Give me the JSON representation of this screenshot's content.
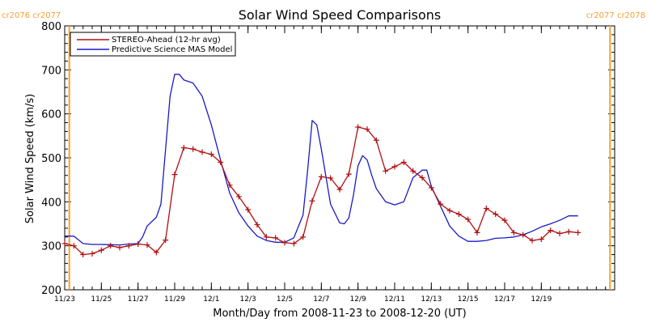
{
  "chart_data": {
    "type": "line",
    "title": "Solar Wind Speed Comparisons",
    "xlabel": "Month/Day from 2008-11-23 to 2008-12-20 (UT)",
    "ylabel": "Solar Wind Speed (km/s)",
    "xlim": [
      "2008-11-23",
      "2008-12-23"
    ],
    "ylim": [
      200,
      800
    ],
    "yticks": [
      200,
      300,
      400,
      500,
      600,
      700,
      800
    ],
    "xticks": [
      {
        "date": "2008-11-23",
        "label": "11/23"
      },
      {
        "date": "2008-11-25",
        "label": "11/25"
      },
      {
        "date": "2008-11-27",
        "label": "11/27"
      },
      {
        "date": "2008-11-29",
        "label": "11/29"
      },
      {
        "date": "2008-12-01",
        "label": "12/1"
      },
      {
        "date": "2008-12-03",
        "label": "12/3"
      },
      {
        "date": "2008-12-05",
        "label": "12/5"
      },
      {
        "date": "2008-12-07",
        "label": "12/7"
      },
      {
        "date": "2008-12-09",
        "label": "12/9"
      },
      {
        "date": "2008-12-11",
        "label": "12/11"
      },
      {
        "date": "2008-12-13",
        "label": "12/13"
      },
      {
        "date": "2008-12-15",
        "label": "12/15"
      },
      {
        "date": "2008-12-17",
        "label": "12/17"
      },
      {
        "date": "2008-12-19",
        "label": "12/19"
      }
    ],
    "grid": false,
    "legend_placement": "top-left",
    "markers": [
      {
        "date": "2008-11-23 06:00",
        "labels": [
          "cr2076",
          "cr2077"
        ],
        "color": "#f5a033"
      },
      {
        "date": "2008-12-22 18:00",
        "labels": [
          "cr2077",
          "cr2078"
        ],
        "color": "#f5a033"
      }
    ],
    "series": [
      {
        "name": "STEREO-Ahead (12-hr avg)",
        "color": "#b01010",
        "marker": "plus",
        "x": [
          "2008-11-23 00:00",
          "2008-11-23 12:00",
          "2008-11-24 00:00",
          "2008-11-24 12:00",
          "2008-11-25 00:00",
          "2008-11-25 12:00",
          "2008-11-26 00:00",
          "2008-11-26 12:00",
          "2008-11-27 00:00",
          "2008-11-27 12:00",
          "2008-11-28 00:00",
          "2008-11-28 12:00",
          "2008-11-29 00:00",
          "2008-11-29 12:00",
          "2008-11-30 00:00",
          "2008-11-30 12:00",
          "2008-12-01 00:00",
          "2008-12-01 12:00",
          "2008-12-02 00:00",
          "2008-12-02 12:00",
          "2008-12-03 00:00",
          "2008-12-03 12:00",
          "2008-12-04 00:00",
          "2008-12-04 12:00",
          "2008-12-05 00:00",
          "2008-12-05 12:00",
          "2008-12-06 00:00",
          "2008-12-06 12:00",
          "2008-12-07 00:00",
          "2008-12-07 12:00",
          "2008-12-08 00:00",
          "2008-12-08 12:00",
          "2008-12-09 00:00",
          "2008-12-09 12:00",
          "2008-12-10 00:00",
          "2008-12-10 12:00",
          "2008-12-11 00:00",
          "2008-12-11 12:00",
          "2008-12-12 00:00",
          "2008-12-12 12:00",
          "2008-12-13 00:00",
          "2008-12-13 12:00",
          "2008-12-14 00:00",
          "2008-12-14 12:00",
          "2008-12-15 00:00",
          "2008-12-15 12:00",
          "2008-12-16 00:00",
          "2008-12-16 12:00",
          "2008-12-17 00:00",
          "2008-12-17 12:00",
          "2008-12-18 00:00",
          "2008-12-18 12:00",
          "2008-12-19 00:00",
          "2008-12-19 12:00",
          "2008-12-20 00:00",
          "2008-12-20 12:00",
          "2008-12-21 00:00"
        ],
        "y": [
          305,
          300,
          280,
          282,
          290,
          300,
          296,
          300,
          304,
          302,
          285,
          313,
          462,
          523,
          520,
          513,
          508,
          490,
          438,
          412,
          382,
          348,
          320,
          318,
          307,
          305,
          320,
          402,
          457,
          454,
          428,
          463,
          570,
          565,
          540,
          470,
          480,
          490,
          470,
          455,
          432,
          395,
          380,
          372,
          360,
          330,
          385,
          372,
          358,
          330,
          325,
          312,
          315,
          335,
          328,
          332,
          330
        ]
      },
      {
        "name": "Predictive Science MAS Model",
        "color": "#1a1ac8",
        "marker": "none",
        "x": [
          "2008-11-23 00:00",
          "2008-11-23 12:00",
          "2008-11-24 00:00",
          "2008-11-24 12:00",
          "2008-11-25 00:00",
          "2008-11-26 00:00",
          "2008-11-26 12:00",
          "2008-11-27 00:00",
          "2008-11-27 06:00",
          "2008-11-27 12:00",
          "2008-11-28 00:00",
          "2008-11-28 06:00",
          "2008-11-28 18:00",
          "2008-11-29 00:00",
          "2008-11-29 06:00",
          "2008-11-29 12:00",
          "2008-11-30 00:00",
          "2008-11-30 12:00",
          "2008-12-01 00:00",
          "2008-12-01 12:00",
          "2008-12-02 00:00",
          "2008-12-02 12:00",
          "2008-12-03 00:00",
          "2008-12-03 12:00",
          "2008-12-04 00:00",
          "2008-12-04 12:00",
          "2008-12-05 00:00",
          "2008-12-05 12:00",
          "2008-12-06 00:00",
          "2008-12-06 06:00",
          "2008-12-06 12:00",
          "2008-12-06 18:00",
          "2008-12-07 00:00",
          "2008-12-07 12:00",
          "2008-12-08 00:00",
          "2008-12-08 06:00",
          "2008-12-08 12:00",
          "2008-12-08 18:00",
          "2008-12-09 00:00",
          "2008-12-09 06:00",
          "2008-12-09 12:00",
          "2008-12-09 18:00",
          "2008-12-10 00:00",
          "2008-12-10 12:00",
          "2008-12-11 00:00",
          "2008-12-11 12:00",
          "2008-12-12 00:00",
          "2008-12-12 12:00",
          "2008-12-12 18:00",
          "2008-12-13 00:00",
          "2008-12-13 12:00",
          "2008-12-14 00:00",
          "2008-12-14 12:00",
          "2008-12-15 00:00",
          "2008-12-15 12:00",
          "2008-12-16 00:00",
          "2008-12-16 12:00",
          "2008-12-17 00:00",
          "2008-12-17 12:00",
          "2008-12-18 00:00",
          "2008-12-18 12:00",
          "2008-12-19 00:00",
          "2008-12-19 12:00",
          "2008-12-20 00:00",
          "2008-12-20 12:00",
          "2008-12-21 00:00"
        ],
        "y": [
          322,
          322,
          305,
          303,
          303,
          302,
          304,
          305,
          320,
          345,
          365,
          395,
          640,
          690,
          690,
          677,
          670,
          640,
          575,
          495,
          420,
          375,
          345,
          322,
          312,
          308,
          308,
          318,
          370,
          470,
          585,
          575,
          520,
          395,
          352,
          350,
          363,
          415,
          482,
          505,
          495,
          460,
          430,
          400,
          393,
          400,
          455,
          472,
          472,
          435,
          390,
          345,
          322,
          310,
          310,
          312,
          317,
          318,
          320,
          325,
          333,
          343,
          350,
          358,
          368,
          368
        ]
      }
    ]
  }
}
